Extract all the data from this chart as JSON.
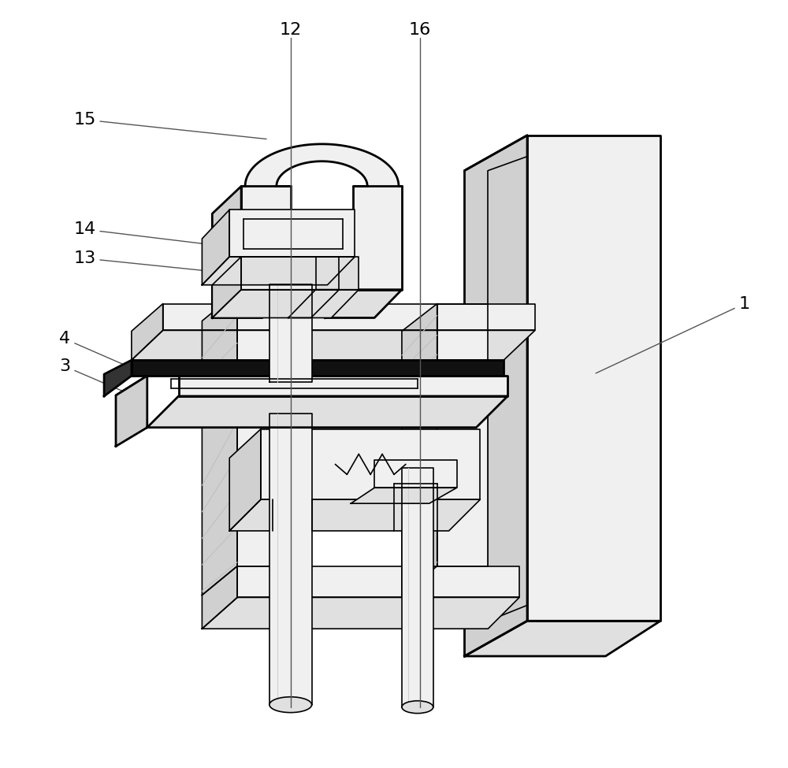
{
  "bg_color": "#ffffff",
  "lc": "#000000",
  "lw": 1.2,
  "lw2": 2.0,
  "gray1": "#f0f0f0",
  "gray2": "#e0e0e0",
  "gray3": "#d0d0d0",
  "gray4": "#c0c0c0",
  "black": "#111111",
  "label_fs": 16,
  "label_color": "#000000",
  "annot_lc": "#555555",
  "annot_lw": 1.0
}
